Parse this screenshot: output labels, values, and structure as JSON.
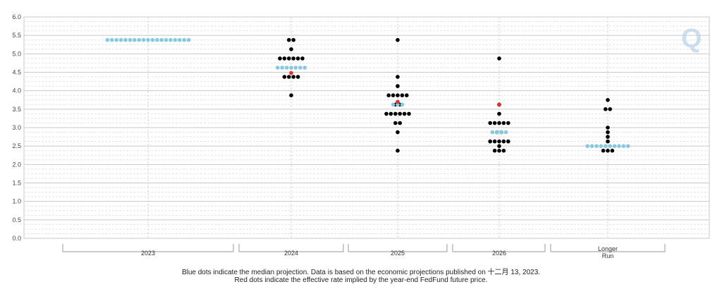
{
  "chart_data": {
    "type": "scatter",
    "title": "",
    "xlabel": "",
    "ylabel": "",
    "ylim": [
      0,
      6
    ],
    "y_ticks": [
      "0.0",
      "0.5",
      "1.0",
      "1.5",
      "2.0",
      "2.5",
      "3.0",
      "3.5",
      "4.0",
      "4.5",
      "5.0",
      "5.5",
      "6.0"
    ],
    "grid": true,
    "categories": [
      "2023",
      "2024",
      "2025",
      "2026",
      "Longer Run"
    ],
    "category_labels": [
      [
        "2023"
      ],
      [
        "2024"
      ],
      [
        "2025"
      ],
      [
        "2026"
      ],
      [
        "Longer",
        "Run"
      ]
    ],
    "colors": {
      "projection": "#000000",
      "median": "#87c8e0",
      "market": "#e03030"
    },
    "series": [
      {
        "name": "",
        "role": "projection",
        "points": {
          "2024": [
            [
              5.375,
              2
            ],
            [
              5.125,
              1
            ],
            [
              4.875,
              6
            ],
            [
              4.375,
              4
            ],
            [
              3.875,
              1
            ]
          ],
          "2025": [
            [
              5.375,
              1
            ],
            [
              4.375,
              1
            ],
            [
              4.125,
              1
            ],
            [
              3.875,
              5
            ],
            [
              3.625,
              2
            ],
            [
              3.375,
              6
            ],
            [
              3.125,
              2
            ],
            [
              2.875,
              1
            ],
            [
              2.375,
              1
            ]
          ],
          "2026": [
            [
              4.875,
              1
            ],
            [
              3.625,
              1
            ],
            [
              3.375,
              1
            ],
            [
              3.125,
              5
            ],
            [
              2.875,
              2
            ],
            [
              2.625,
              5
            ],
            [
              2.5,
              1
            ],
            [
              2.375,
              3
            ]
          ],
          "Longer Run": [
            [
              3.75,
              1
            ],
            [
              3.5,
              2
            ],
            [
              3.0,
              1
            ],
            [
              2.875,
              1
            ],
            [
              2.75,
              1
            ],
            [
              2.625,
              1
            ],
            [
              2.375,
              3
            ]
          ]
        }
      },
      {
        "name": "",
        "role": "median",
        "points": {
          "2023": [
            [
              5.375,
              19
            ]
          ],
          "2024": [
            [
              4.625,
              7
            ]
          ],
          "2025": [
            [
              3.625,
              3
            ]
          ],
          "2026": [
            [
              2.875,
              4
            ]
          ],
          "Longer Run": [
            [
              2.5,
              10
            ]
          ]
        }
      },
      {
        "name": "",
        "role": "market",
        "points": {
          "2024": [
            [
              4.48,
              1
            ]
          ],
          "2025": [
            [
              3.7,
              1
            ]
          ],
          "2026": [
            [
              3.62,
              1
            ]
          ]
        }
      }
    ]
  },
  "notes": {
    "line1": "Blue dots indicate the median projection. Data is based on the economic projections published on 十二月 13, 2023.",
    "line2": "Red dots indicate the effective rate implied by the year-end FedFund future price."
  },
  "logo_text": "Q"
}
